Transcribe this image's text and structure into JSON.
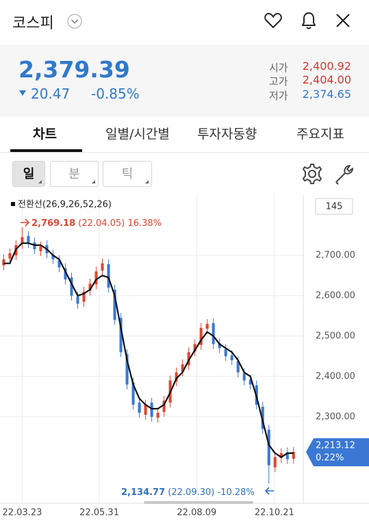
{
  "header": {
    "title": "코스피"
  },
  "quote": {
    "price": "2,379.39",
    "change": "20.47",
    "change_rate": "-0.85%",
    "open_label": "시가",
    "open": "2,400.92",
    "high_label": "고가",
    "high": "2,404.00",
    "low_label": "저가",
    "low": "2,374.65"
  },
  "tabs": [
    "차트",
    "일별/시간별",
    "투자자동향",
    "주요지표"
  ],
  "toolbar": {
    "buttons": [
      "일",
      "분",
      "틱"
    ]
  },
  "chart_data": {
    "type": "candlestick",
    "count": "145",
    "up_color": "#e0452f",
    "down_color": "#3a78d4",
    "xlim": [
      -0.6,
      48.8
    ],
    "xticks": [
      {
        "value": 3,
        "label": "22.03.23"
      },
      {
        "value": 15.5,
        "label": "22.05.31"
      },
      {
        "value": 31.3,
        "label": "22.08.09"
      },
      {
        "value": 43.9,
        "label": "22.10.21"
      }
    ],
    "ylim": [
      2086,
      2849
    ],
    "yticks": [
      {
        "value": 2300,
        "label": "2,300.00"
      },
      {
        "value": 2400,
        "label": "2,400.00"
      },
      {
        "value": 2500,
        "label": "2,500.00"
      },
      {
        "value": 2600,
        "label": "2,600.00"
      },
      {
        "value": 2700,
        "label": "2,700.00"
      }
    ],
    "grid": true,
    "open": [
      2675,
      2692,
      2700,
      2728,
      2748,
      2732,
      2710,
      2725,
      2702,
      2688,
      2668,
      2645,
      2598,
      2585,
      2612,
      2628,
      2662,
      2678,
      2615,
      2545,
      2455,
      2385,
      2335,
      2305,
      2335,
      2298,
      2312,
      2335,
      2388,
      2412,
      2428,
      2462,
      2478,
      2518,
      2532,
      2482,
      2468,
      2452,
      2438,
      2408,
      2392,
      2378,
      2325,
      2268,
      2175,
      2198,
      2212,
      2196
    ],
    "high": [
      2702,
      2717,
      2737,
      2769.18,
      2760,
      2744,
      2734,
      2737,
      2714,
      2700,
      2680,
      2657,
      2610,
      2622,
      2642,
      2672,
      2692,
      2690,
      2627,
      2557,
      2467,
      2397,
      2347,
      2342,
      2347,
      2322,
      2352,
      2402,
      2422,
      2442,
      2472,
      2492,
      2532,
      2542,
      2544,
      2494,
      2480,
      2464,
      2450,
      2420,
      2404,
      2390,
      2337,
      2280,
      2212,
      2222,
      2224,
      2225
    ],
    "low": [
      2663,
      2680,
      2688,
      2716,
      2718,
      2703,
      2698,
      2693,
      2678,
      2658,
      2628,
      2588,
      2568,
      2573,
      2600,
      2616,
      2650,
      2608,
      2528,
      2448,
      2368,
      2318,
      2298,
      2293,
      2288,
      2286,
      2300,
      2323,
      2376,
      2400,
      2416,
      2450,
      2466,
      2506,
      2468,
      2458,
      2438,
      2428,
      2398,
      2378,
      2368,
      2318,
      2258,
      2134.77,
      2163,
      2186,
      2183,
      2184
    ],
    "close": [
      2690,
      2705,
      2725,
      2745,
      2730,
      2715,
      2722,
      2705,
      2690,
      2670,
      2640,
      2600,
      2580,
      2610,
      2630,
      2660,
      2680,
      2620,
      2540,
      2460,
      2380,
      2330,
      2310,
      2330,
      2300,
      2310,
      2340,
      2390,
      2410,
      2430,
      2460,
      2480,
      2520,
      2530,
      2480,
      2470,
      2450,
      2440,
      2410,
      2390,
      2380,
      2330,
      2270,
      2180,
      2200,
      2210,
      2195,
      2213
    ],
    "series": [
      {
        "name": "전환선(26,9,26,52,26)",
        "color": "#111111",
        "values": [
          2680,
          2680,
          2715,
          2730,
          2730,
          2725,
          2725,
          2715,
          2700,
          2690,
          2660,
          2630,
          2600,
          2605,
          2615,
          2640,
          2650,
          2645,
          2600,
          2520,
          2440,
          2380,
          2345,
          2330,
          2320,
          2320,
          2330,
          2360,
          2395,
          2410,
          2440,
          2465,
          2490,
          2510,
          2500,
          2480,
          2470,
          2460,
          2440,
          2410,
          2400,
          2350,
          2290,
          2230,
          2210,
          2200,
          2210,
          2210
        ]
      }
    ],
    "high_annotation": {
      "price": "2,769.18",
      "date": "(22.04.05)",
      "change": "16.38%"
    },
    "low_annotation": {
      "price": "2,134.77",
      "date": "(22.09.30)",
      "change": "-10.28%"
    },
    "last": {
      "price": "2,213.12",
      "change": "0.22%"
    }
  }
}
